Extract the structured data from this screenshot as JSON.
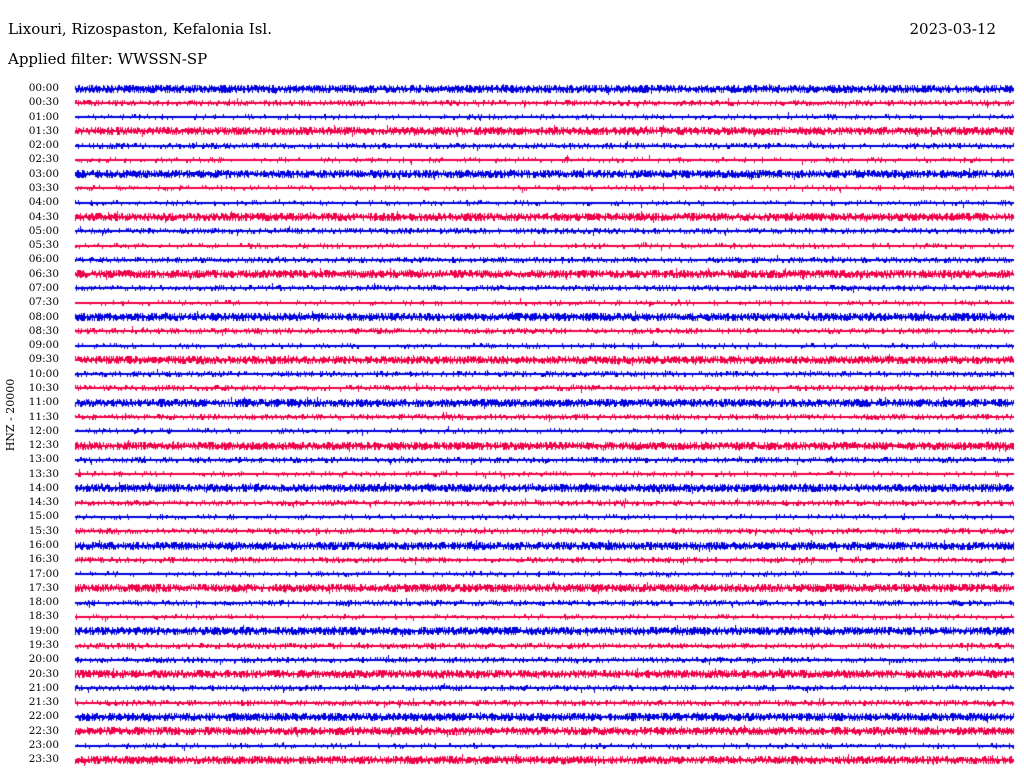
{
  "header": {
    "station_title": "Lixouri, Rizospaston, Kefalonia Isl.",
    "date": "2023-03-12",
    "filter_label": "Applied filter: WWSSN-SP"
  },
  "axis": {
    "channel_label": "HNZ - 20000"
  },
  "colors": {
    "background": "#ffffff",
    "text": "#000000",
    "trace_blue": "#0000dd",
    "trace_red": "#f00048"
  },
  "chart_data": {
    "type": "line",
    "subtype": "helicorder-seismogram",
    "title": "Lixouri, Rizospaston, Kefalonia Isl.",
    "date": "2023-03-12",
    "applied_filter": "WWSSN-SP",
    "channel": "HNZ - 20000",
    "row_interval_minutes": 30,
    "legend_position": "none",
    "grid": false,
    "rows": [
      {
        "time": "00:00",
        "color": "blue",
        "noise_level": 3
      },
      {
        "time": "00:30",
        "color": "red",
        "noise_level": 2
      },
      {
        "time": "01:00",
        "color": "blue",
        "noise_level": 1
      },
      {
        "time": "01:30",
        "color": "red",
        "noise_level": 3
      },
      {
        "time": "02:00",
        "color": "blue",
        "noise_level": 2
      },
      {
        "time": "02:30",
        "color": "red",
        "noise_level": 1
      },
      {
        "time": "03:00",
        "color": "blue",
        "noise_level": 3
      },
      {
        "time": "03:30",
        "color": "red",
        "noise_level": 1
      },
      {
        "time": "04:00",
        "color": "blue",
        "noise_level": 1
      },
      {
        "time": "04:30",
        "color": "red",
        "noise_level": 3
      },
      {
        "time": "05:00",
        "color": "blue",
        "noise_level": 2
      },
      {
        "time": "05:30",
        "color": "red",
        "noise_level": 1
      },
      {
        "time": "06:00",
        "color": "blue",
        "noise_level": 2
      },
      {
        "time": "06:30",
        "color": "red",
        "noise_level": 3
      },
      {
        "time": "07:00",
        "color": "blue",
        "noise_level": 2
      },
      {
        "time": "07:30",
        "color": "red",
        "noise_level": 1
      },
      {
        "time": "08:00",
        "color": "blue",
        "noise_level": 3
      },
      {
        "time": "08:30",
        "color": "red",
        "noise_level": 2
      },
      {
        "time": "09:00",
        "color": "blue",
        "noise_level": 1
      },
      {
        "time": "09:30",
        "color": "red",
        "noise_level": 3
      },
      {
        "time": "10:00",
        "color": "blue",
        "noise_level": 2
      },
      {
        "time": "10:30",
        "color": "red",
        "noise_level": 2
      },
      {
        "time": "11:00",
        "color": "blue",
        "noise_level": 3
      },
      {
        "time": "11:30",
        "color": "red",
        "noise_level": 2
      },
      {
        "time": "12:00",
        "color": "blue",
        "noise_level": 1
      },
      {
        "time": "12:30",
        "color": "red",
        "noise_level": 3
      },
      {
        "time": "13:00",
        "color": "blue",
        "noise_level": 2
      },
      {
        "time": "13:30",
        "color": "red",
        "noise_level": 1
      },
      {
        "time": "14:00",
        "color": "blue",
        "noise_level": 3
      },
      {
        "time": "14:30",
        "color": "red",
        "noise_level": 2
      },
      {
        "time": "15:00",
        "color": "blue",
        "noise_level": 1
      },
      {
        "time": "15:30",
        "color": "red",
        "noise_level": 2
      },
      {
        "time": "16:00",
        "color": "blue",
        "noise_level": 3
      },
      {
        "time": "16:30",
        "color": "red",
        "noise_level": 2
      },
      {
        "time": "17:00",
        "color": "blue",
        "noise_level": 1
      },
      {
        "time": "17:30",
        "color": "red",
        "noise_level": 3
      },
      {
        "time": "18:00",
        "color": "blue",
        "noise_level": 2
      },
      {
        "time": "18:30",
        "color": "red",
        "noise_level": 1
      },
      {
        "time": "19:00",
        "color": "blue",
        "noise_level": 3
      },
      {
        "time": "19:30",
        "color": "red",
        "noise_level": 2
      },
      {
        "time": "20:00",
        "color": "blue",
        "noise_level": 2
      },
      {
        "time": "20:30",
        "color": "red",
        "noise_level": 3
      },
      {
        "time": "21:00",
        "color": "blue",
        "noise_level": 2
      },
      {
        "time": "21:30",
        "color": "red",
        "noise_level": 2
      },
      {
        "time": "22:00",
        "color": "blue",
        "noise_level": 3
      },
      {
        "time": "22:30",
        "color": "red",
        "noise_level": 3
      },
      {
        "time": "23:00",
        "color": "blue",
        "noise_level": 1
      },
      {
        "time": "23:30",
        "color": "red",
        "noise_level": 3
      }
    ]
  }
}
